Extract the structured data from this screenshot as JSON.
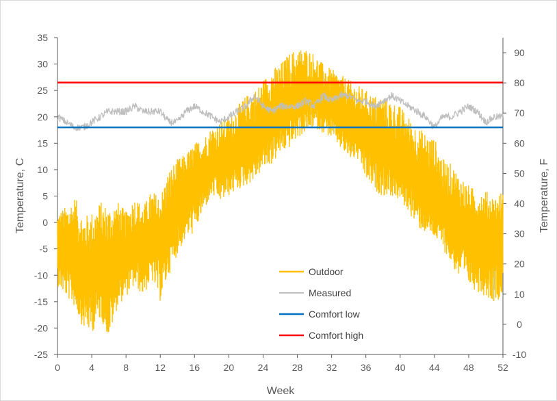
{
  "chart_data": {
    "type": "line",
    "xlabel": "Week",
    "ylabel_left": "Temperature, C",
    "ylabel_right": "Temperature, F",
    "xlim": [
      0,
      52
    ],
    "ylim_left": [
      -25,
      35
    ],
    "ylim_right": [
      -10,
      95
    ],
    "x_ticks": [
      "0",
      "4",
      "8",
      "12",
      "16",
      "20",
      "24",
      "28",
      "32",
      "36",
      "40",
      "44",
      "48",
      "52"
    ],
    "y_ticks_left": [
      "35",
      "30",
      "25",
      "20",
      "15",
      "10",
      "5",
      "0",
      "-5",
      "-10",
      "-15",
      "-20",
      "-25"
    ],
    "y_ticks_right": [
      "90",
      "80",
      "70",
      "60",
      "50",
      "40",
      "30",
      "20",
      "10",
      "0",
      "-10"
    ],
    "grid": false,
    "legend_position": "lower-center",
    "series": [
      {
        "name": "Outdoor",
        "color": "#FFC000",
        "x": [
          0,
          1,
          2,
          3,
          4,
          5,
          6,
          7,
          8,
          9,
          10,
          11,
          12,
          13,
          14,
          15,
          16,
          17,
          18,
          19,
          20,
          21,
          22,
          23,
          24,
          25,
          26,
          27,
          28,
          29,
          30,
          31,
          32,
          33,
          34,
          35,
          36,
          37,
          38,
          39,
          40,
          41,
          42,
          43,
          44,
          45,
          46,
          47,
          48,
          49,
          50,
          51,
          52
        ],
        "low": [
          -12,
          -14,
          -16,
          -20,
          -21,
          -18,
          -22,
          -16,
          -14,
          -12,
          -14,
          -11,
          -15,
          -10,
          -6,
          -3,
          -2,
          2,
          5,
          4,
          5,
          6,
          7,
          8,
          10,
          11,
          13,
          14,
          16,
          17,
          18,
          17,
          16,
          14,
          12,
          12,
          8,
          6,
          5,
          5,
          4,
          2,
          -1,
          -2,
          -3,
          -5,
          -8,
          -11,
          -12,
          -13,
          -14,
          -15,
          -14
        ],
        "high": [
          2,
          3,
          5,
          1,
          2,
          4,
          3,
          4,
          2,
          5,
          3,
          6,
          5,
          10,
          12,
          13,
          15,
          16,
          18,
          19,
          20,
          22,
          24,
          25,
          27,
          29,
          30,
          32,
          33,
          33,
          32,
          30,
          29,
          28,
          27,
          26,
          25,
          24,
          24,
          23,
          22,
          20,
          18,
          17,
          16,
          12,
          11,
          9,
          7,
          6,
          6,
          5,
          6
        ],
        "mid": [
          -5,
          -6,
          -7,
          -9,
          -10,
          -8,
          -9,
          -7,
          -6,
          -5,
          -4,
          -3,
          -4,
          0,
          2,
          5,
          7,
          9,
          11,
          11,
          12,
          14,
          15,
          16,
          18,
          20,
          21,
          22,
          23,
          24,
          24,
          23,
          22,
          21,
          19,
          18,
          17,
          15,
          14,
          13,
          12,
          10,
          8,
          6,
          5,
          3,
          1,
          -1,
          -2,
          -3,
          -3,
          -4,
          -4
        ]
      },
      {
        "name": "Measured",
        "color": "#BFBFBF",
        "x": [
          0,
          1,
          2,
          3,
          4,
          5,
          6,
          7,
          8,
          9,
          10,
          11,
          12,
          13,
          14,
          15,
          16,
          17,
          18,
          19,
          20,
          21,
          22,
          23,
          24,
          25,
          26,
          27,
          28,
          29,
          30,
          31,
          32,
          33,
          34,
          35,
          36,
          37,
          38,
          39,
          40,
          41,
          42,
          43,
          44,
          45,
          46,
          47,
          48,
          49,
          50,
          51,
          52
        ],
        "values": [
          20,
          19,
          18,
          18,
          19,
          20,
          21,
          21,
          21,
          22,
          21,
          21,
          21,
          19,
          19,
          21,
          22,
          21,
          20,
          19,
          20,
          21,
          22,
          24,
          22,
          21,
          22,
          22,
          22,
          23,
          22,
          24,
          23,
          24,
          24,
          23,
          23,
          22,
          23,
          24,
          23,
          22,
          21,
          20,
          18,
          20,
          20,
          21,
          22,
          21,
          19,
          20,
          20
        ]
      },
      {
        "name": "Comfort low",
        "color": "#0070C0",
        "value": 18
      },
      {
        "name": "Comfort high",
        "color": "#FF0000",
        "value": 26.5
      }
    ]
  }
}
